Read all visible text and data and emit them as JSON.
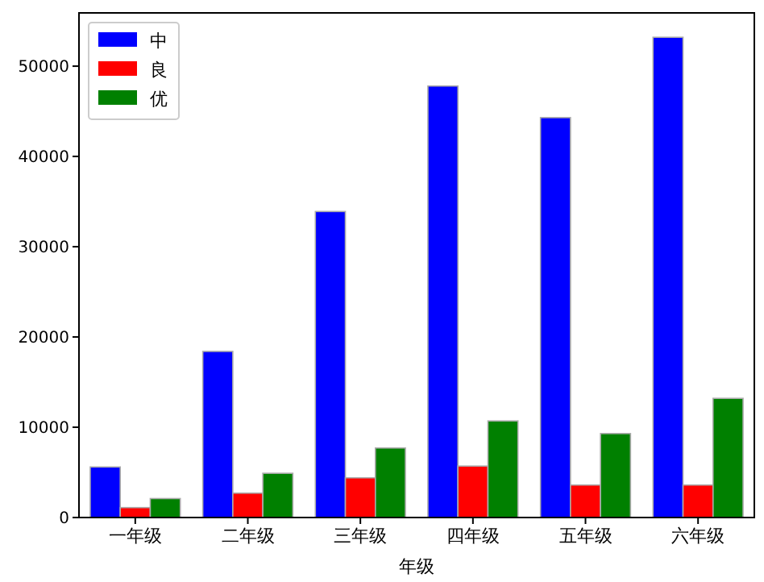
{
  "chart_data": {
    "type": "bar",
    "xlabel": "年级",
    "categories": [
      "一年级",
      "二年级",
      "三年级",
      "四年级",
      "五年级",
      "六年级"
    ],
    "series": [
      {
        "name": "中",
        "color": "#0000ff",
        "values": [
          5600,
          18400,
          33900,
          47800,
          44300,
          53200
        ]
      },
      {
        "name": "良",
        "color": "#ff0000",
        "values": [
          1100,
          2700,
          4400,
          5700,
          3600,
          3600
        ]
      },
      {
        "name": "优",
        "color": "#008000",
        "values": [
          2100,
          4900,
          7700,
          10700,
          9300,
          13200
        ]
      }
    ],
    "ylim": [
      0,
      55900
    ],
    "yticks": [
      0,
      10000,
      20000,
      30000,
      40000,
      50000
    ],
    "legend": "top left"
  }
}
